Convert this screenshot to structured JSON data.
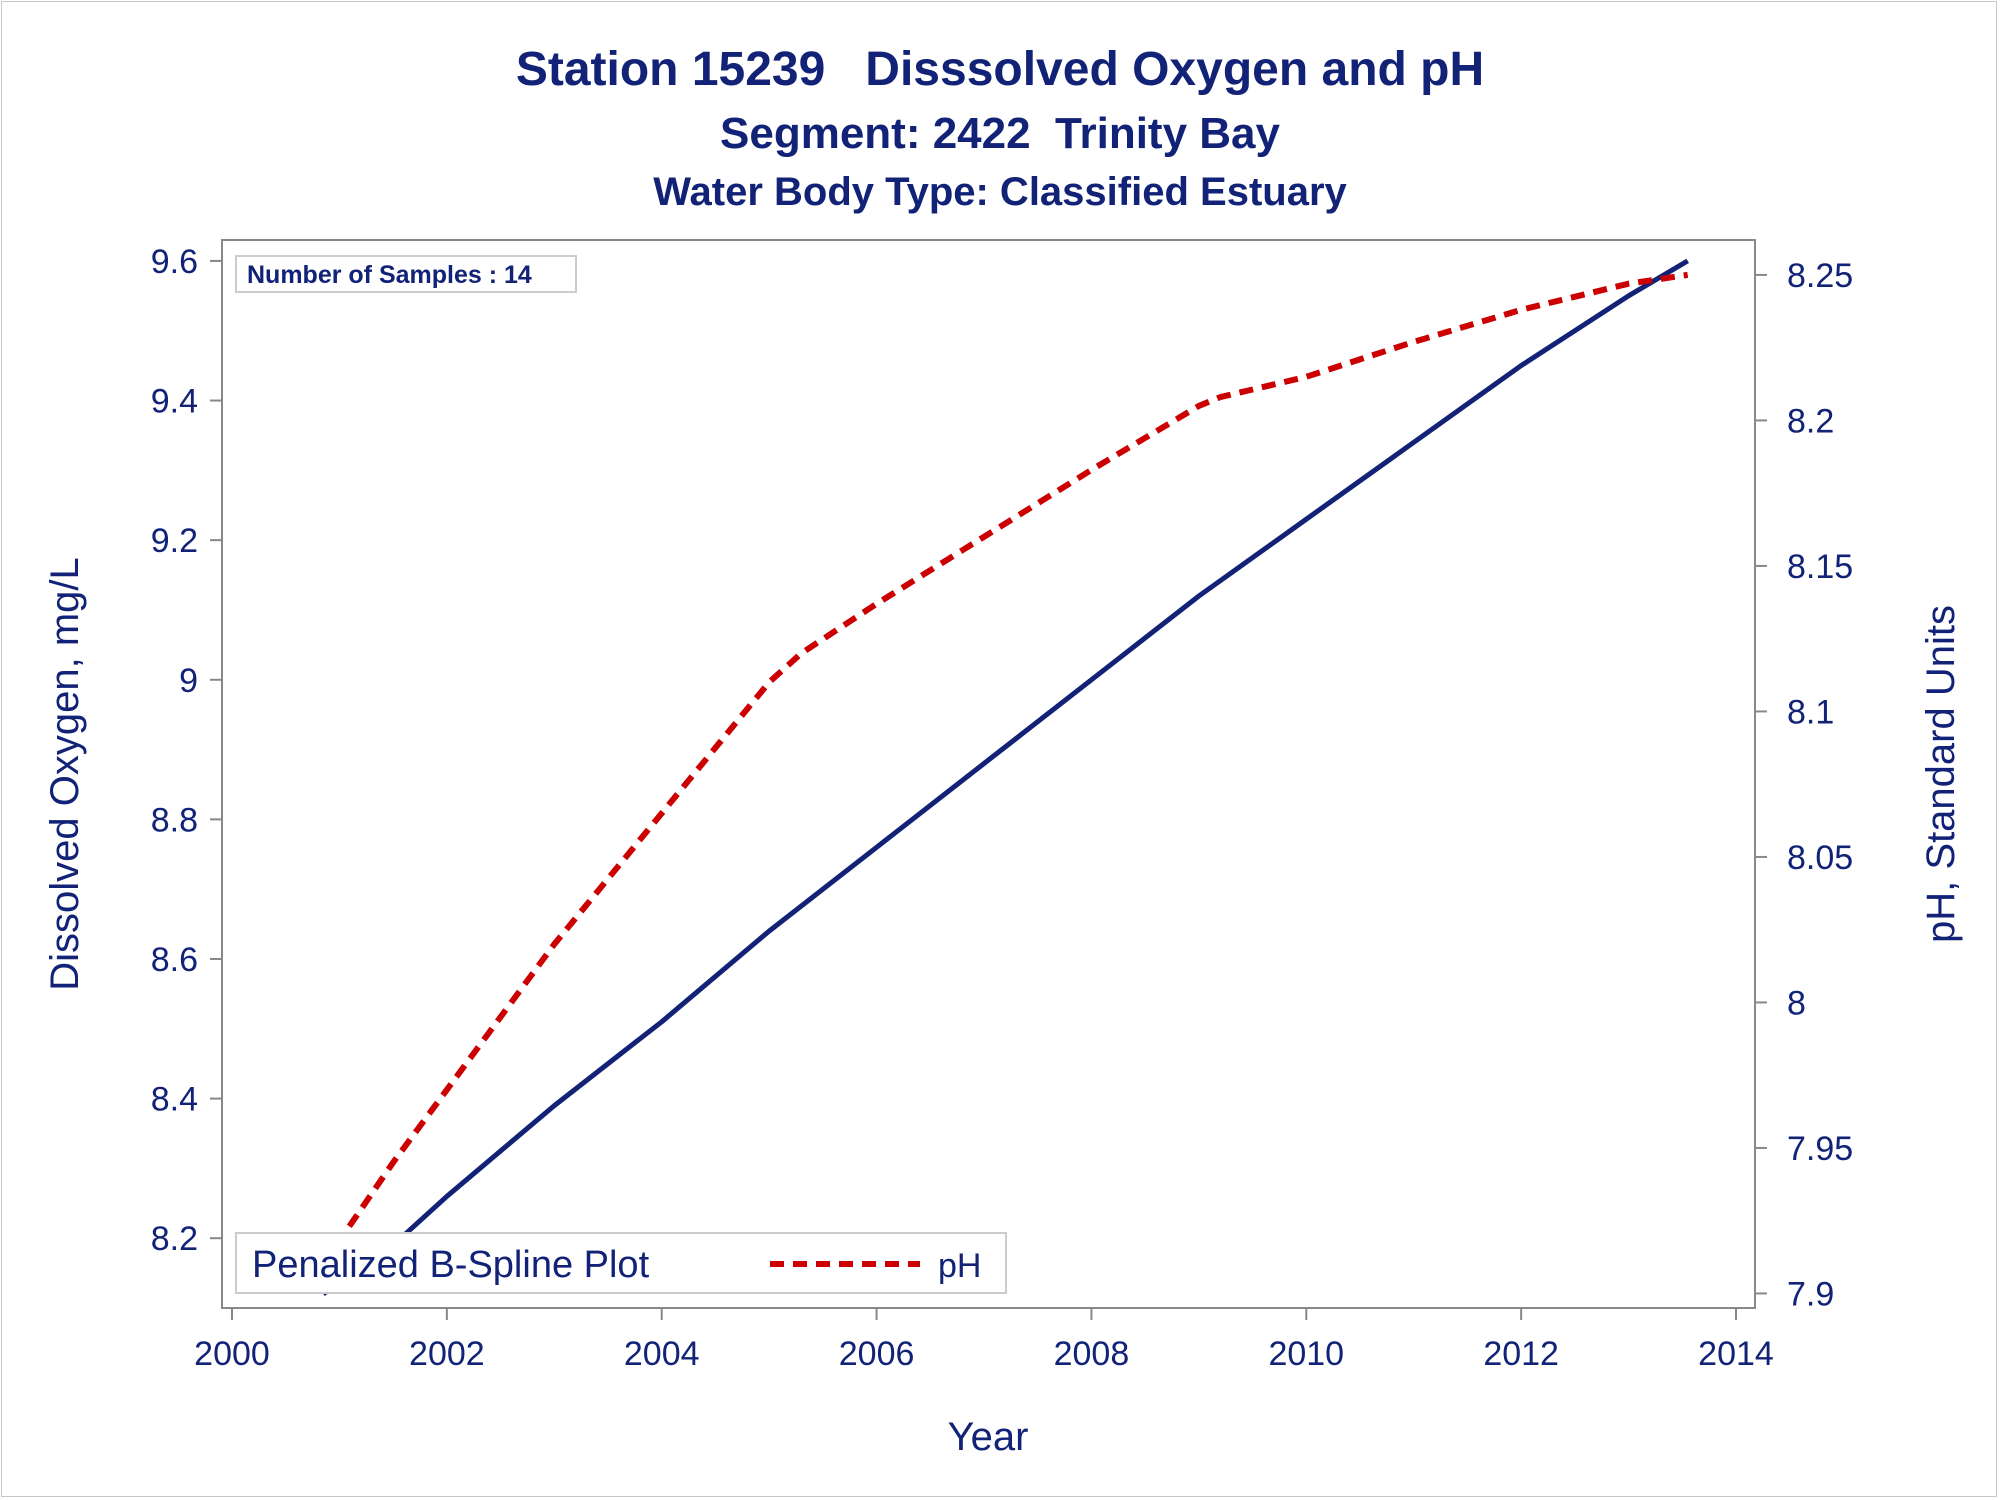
{
  "chart_data": {
    "type": "line",
    "title": "Station 15239   Disssolved Oxygen and pH",
    "subtitle": "Segment: 2422  Trinity Bay",
    "subtitle2": "Water Body Type: Classified Estuary",
    "xlabel": "Year",
    "ylabel": "Dissolved Oxygen, mg/L",
    "y2label": "pH, Standard Units",
    "xlim": [
      2000,
      2014
    ],
    "ylim": [
      8.1,
      9.63
    ],
    "y2lim": [
      7.895,
      8.262
    ],
    "xticks": [
      2000,
      2002,
      2004,
      2006,
      2008,
      2010,
      2012,
      2014
    ],
    "yticks": [
      8.2,
      8.4,
      8.6,
      8.8,
      9,
      9.2,
      9.4,
      9.6
    ],
    "y2ticks": [
      7.9,
      7.95,
      8,
      8.05,
      8.1,
      8.15,
      8.2,
      8.25
    ],
    "ytick_labels": [
      "8.2",
      "8.4",
      "8.6",
      "8.8",
      "9",
      "9.2",
      "9.4",
      "9.6"
    ],
    "y2tick_labels": [
      "7.9",
      "7.95",
      "8",
      "8.05",
      "8.1",
      "8.15",
      "8.2",
      "8.25"
    ],
    "xtick_labels": [
      "2000",
      "2002",
      "2004",
      "2006",
      "2008",
      "2010",
      "2012",
      "2014"
    ],
    "annotation": "Number of Samples : 14",
    "legend": {
      "title": "Penalized B-Spline Plot",
      "entries": [
        "pH"
      ],
      "placement": "bottom-left"
    },
    "colors": {
      "do_line": "#112277",
      "ph_line": "#cc0000",
      "text": "#112277",
      "axis": "#888888"
    },
    "series": [
      {
        "axis": "left",
        "style": "solid",
        "x": [
          2000.85,
          2001.5,
          2002.0,
          2003.0,
          2004.0,
          2005.0,
          2006.0,
          2007.0,
          2008.0,
          2009.0,
          2010.0,
          2011.0,
          2012.0,
          2013.0,
          2013.55
        ],
        "values": [
          8.12,
          8.19,
          8.26,
          8.39,
          8.51,
          8.64,
          8.76,
          8.88,
          9.0,
          9.12,
          9.23,
          9.34,
          9.45,
          9.55,
          9.6
        ]
      },
      {
        "name": "pH",
        "axis": "right",
        "style": "dashed",
        "x": [
          2000.85,
          2001.5,
          2002.0,
          2003.0,
          2004.0,
          2005.0,
          2005.3,
          2006.0,
          2007.0,
          2008.0,
          2009.0,
          2009.2,
          2010.0,
          2011.0,
          2012.0,
          2013.0,
          2013.55
        ],
        "values": [
          7.91,
          7.945,
          7.97,
          8.02,
          8.065,
          8.11,
          8.12,
          8.137,
          8.16,
          8.183,
          8.205,
          8.208,
          8.215,
          8.227,
          8.238,
          8.247,
          8.25
        ]
      }
    ]
  }
}
